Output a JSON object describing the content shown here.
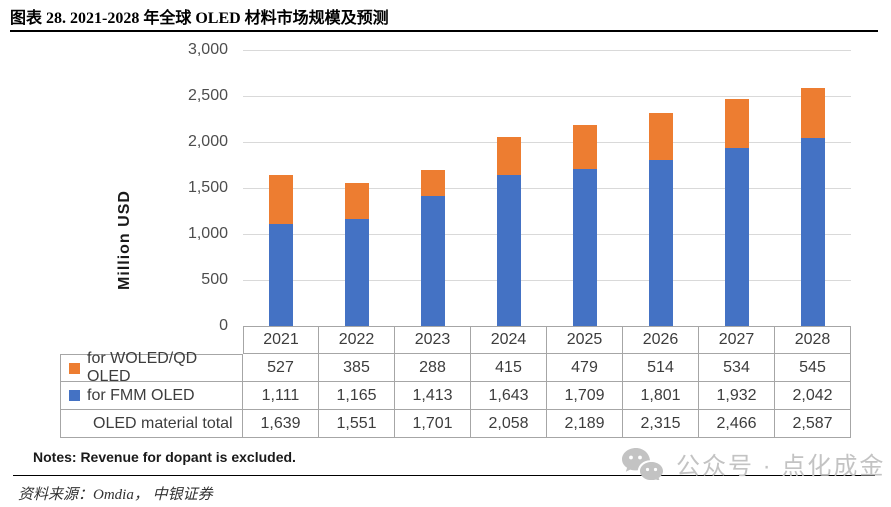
{
  "figure": {
    "title": "图表 28. 2021-2028 年全球 OLED 材料市场规模及预测",
    "notes": "Notes: Revenue for dopant is excluded.",
    "source": "资料来源：Omdia，  中银证券",
    "watermark": "公众号 · 点化成金",
    "wechat_icon": "wechat-icon"
  },
  "chart_data": {
    "type": "bar",
    "stacked": true,
    "title": "",
    "xlabel": "",
    "ylabel": "Million USD",
    "categories": [
      "2021",
      "2022",
      "2023",
      "2024",
      "2025",
      "2026",
      "2027",
      "2028"
    ],
    "series": [
      {
        "name": "for FMM OLED",
        "color": "#4472C4",
        "values": [
          1111,
          1165,
          1413,
          1643,
          1709,
          1801,
          1932,
          2042
        ]
      },
      {
        "name": "for WOLED/QD OLED",
        "color": "#ED7D31",
        "values": [
          527,
          385,
          288,
          415,
          479,
          514,
          534,
          545
        ]
      }
    ],
    "totals": [
      1639,
      1551,
      1701,
      2058,
      2189,
      2315,
      2466,
      2587
    ],
    "ylim": [
      0,
      3000
    ],
    "ytick_step": 500,
    "ytick_labels": [
      "0",
      "500",
      "1,000",
      "1,500",
      "2,000",
      "2,500",
      "3,000"
    ],
    "grid": true,
    "gridline_color": "#d9d9d9",
    "legend_position": "data-table"
  },
  "data_table": {
    "year_headers": [
      "2021",
      "2022",
      "2023",
      "2024",
      "2025",
      "2026",
      "2027",
      "2028"
    ],
    "rows": [
      {
        "label": "for WOLED/QD OLED",
        "swatch": "#ED7D31",
        "values": [
          "527",
          "385",
          "288",
          "415",
          "479",
          "514",
          "534",
          "545"
        ]
      },
      {
        "label": "for FMM OLED",
        "swatch": "#4472C4",
        "values": [
          "1,111",
          "1,165",
          "1,413",
          "1,643",
          "1,709",
          "1,801",
          "1,932",
          "2,042"
        ]
      },
      {
        "label": "OLED material total",
        "swatch": null,
        "values": [
          "1,639",
          "1,551",
          "1,701",
          "2,058",
          "2,189",
          "2,315",
          "2,466",
          "2,587"
        ]
      }
    ]
  }
}
